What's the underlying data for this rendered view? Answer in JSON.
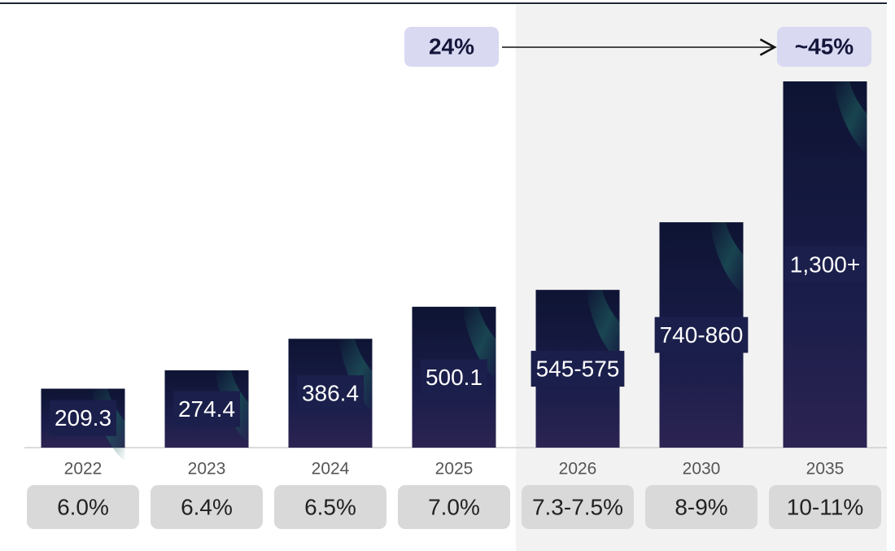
{
  "chart_data": {
    "type": "bar",
    "categories": [
      "2022",
      "2023",
      "2024",
      "2025",
      "2026",
      "2030",
      "2035"
    ],
    "values": [
      209.3,
      274.4,
      386.4,
      500.1,
      560,
      800,
      1300
    ],
    "value_labels": [
      "209.3",
      "274.4",
      "386.4",
      "500.1",
      "545-575",
      "740-860",
      "1,300+"
    ],
    "rate_labels": [
      "6.0%",
      "6.4%",
      "6.5%",
      "7.0%",
      "7.3-7.5%",
      "8-9%",
      "10-11%"
    ],
    "annotations": [
      "24%",
      "~45%"
    ]
  }
}
